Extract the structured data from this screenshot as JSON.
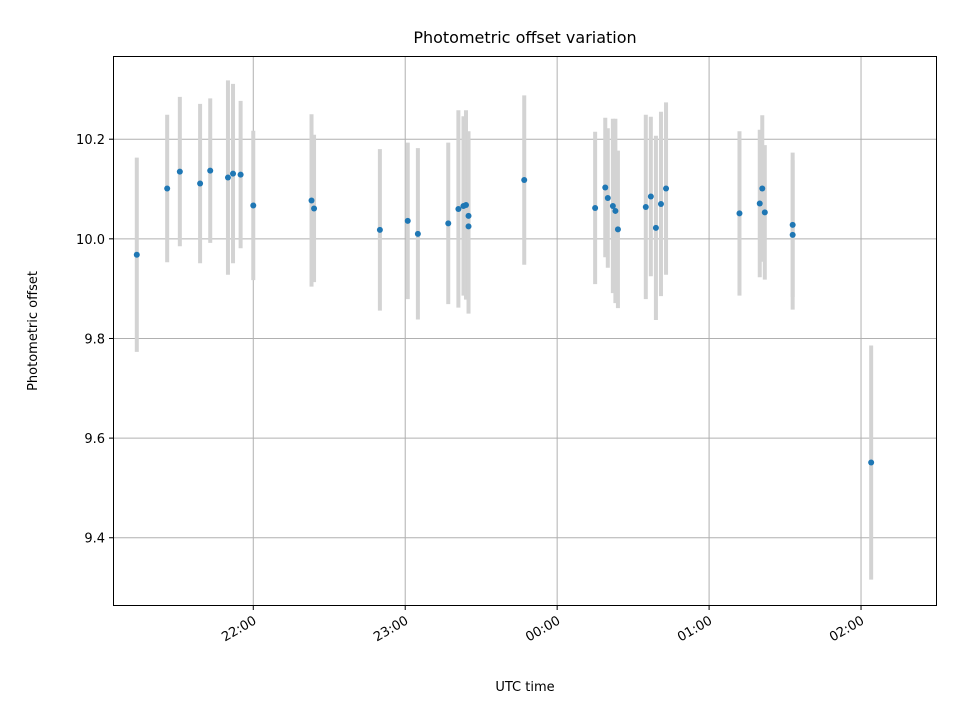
{
  "chart_data": {
    "type": "scatter",
    "title": "Photometric offset variation",
    "xlabel": "UTC time",
    "ylabel": "Photometric offset",
    "x_tick_labels": [
      "22:00",
      "23:00",
      "00:00",
      "01:00",
      "02:00"
    ],
    "y_ticks": [
      9.4,
      9.6,
      9.8,
      10.0,
      10.2
    ],
    "y_tick_labels": [
      "9.4",
      "9.6",
      "9.8",
      "10.0",
      "10.2"
    ],
    "xlim": [
      "21:05",
      "02:30"
    ],
    "ylim": [
      9.265,
      10.365
    ],
    "grid": true,
    "point_color": "#1f77b4",
    "errorbar_color": "#d3d3d3",
    "points": [
      {
        "x": "21:14",
        "y": 9.968,
        "err": 0.195
      },
      {
        "x": "21:26",
        "y": 10.101,
        "err": 0.148
      },
      {
        "x": "21:31",
        "y": 10.135,
        "err": 0.15
      },
      {
        "x": "21:39",
        "y": 10.111,
        "err": 0.16
      },
      {
        "x": "21:43",
        "y": 10.137,
        "err": 0.145
      },
      {
        "x": "21:50",
        "y": 10.123,
        "err": 0.195
      },
      {
        "x": "21:52",
        "y": 10.131,
        "err": 0.18
      },
      {
        "x": "21:55",
        "y": 10.129,
        "err": 0.148
      },
      {
        "x": "22:00",
        "y": 10.067,
        "err": 0.15
      },
      {
        "x": "22:23",
        "y": 10.077,
        "err": 0.173
      },
      {
        "x": "22:24",
        "y": 10.061,
        "err": 0.148
      },
      {
        "x": "22:50",
        "y": 10.018,
        "err": 0.162
      },
      {
        "x": "23:01",
        "y": 10.036,
        "err": 0.157
      },
      {
        "x": "23:05",
        "y": 10.01,
        "err": 0.172
      },
      {
        "x": "23:17",
        "y": 10.031,
        "err": 0.162
      },
      {
        "x": "23:21",
        "y": 10.06,
        "err": 0.198
      },
      {
        "x": "23:23",
        "y": 10.066,
        "err": 0.18
      },
      {
        "x": "23:24",
        "y": 10.068,
        "err": 0.19
      },
      {
        "x": "23:25",
        "y": 10.046,
        "err": 0.17
      },
      {
        "x": "23:25",
        "y": 10.025,
        "err": 0.175
      },
      {
        "x": "23:47",
        "y": 10.118,
        "err": 0.17
      },
      {
        "x": "00:15",
        "y": 10.062,
        "err": 0.153
      },
      {
        "x": "00:19",
        "y": 10.103,
        "err": 0.14
      },
      {
        "x": "00:20",
        "y": 10.082,
        "err": 0.14
      },
      {
        "x": "00:22",
        "y": 10.066,
        "err": 0.175
      },
      {
        "x": "00:23",
        "y": 10.056,
        "err": 0.185
      },
      {
        "x": "00:24",
        "y": 10.019,
        "err": 0.158
      },
      {
        "x": "00:35",
        "y": 10.064,
        "err": 0.185
      },
      {
        "x": "00:37",
        "y": 10.085,
        "err": 0.16
      },
      {
        "x": "00:39",
        "y": 10.022,
        "err": 0.185
      },
      {
        "x": "00:41",
        "y": 10.07,
        "err": 0.185
      },
      {
        "x": "00:43",
        "y": 10.101,
        "err": 0.173
      },
      {
        "x": "01:12",
        "y": 10.051,
        "err": 0.165
      },
      {
        "x": "01:20",
        "y": 10.071,
        "err": 0.148
      },
      {
        "x": "01:21",
        "y": 10.101,
        "err": 0.147
      },
      {
        "x": "01:22",
        "y": 10.053,
        "err": 0.135
      },
      {
        "x": "01:33",
        "y": 10.008,
        "err": 0.15
      },
      {
        "x": "01:33",
        "y": 10.028,
        "err": 0.145
      },
      {
        "x": "02:04",
        "y": 9.551,
        "err": 0.235
      }
    ]
  }
}
